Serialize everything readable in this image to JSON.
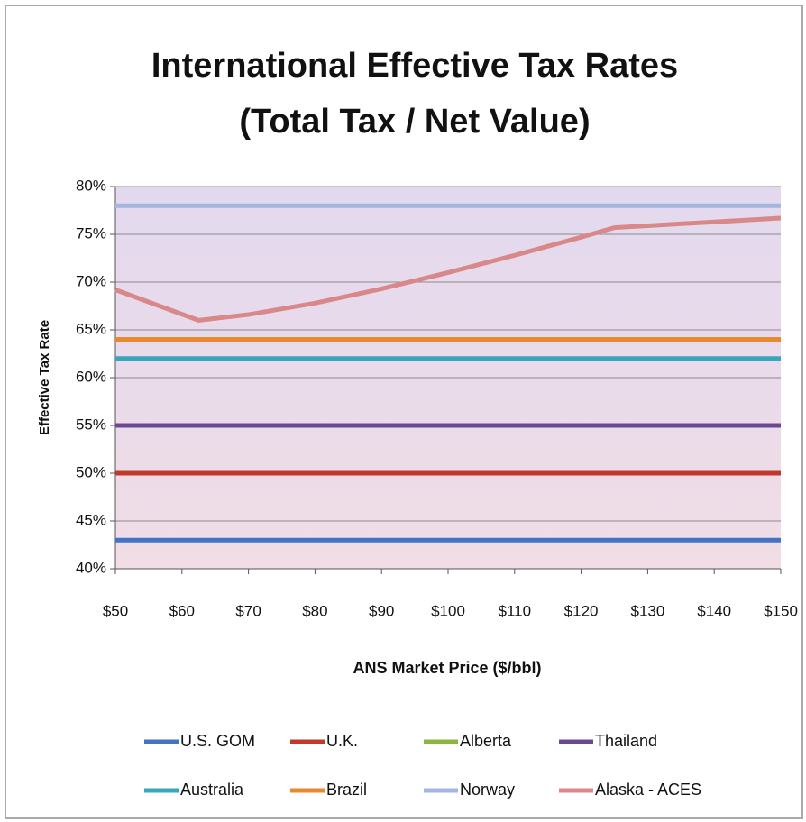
{
  "chart_data": {
    "type": "line",
    "title": "International Effective Tax Rates",
    "subtitle": "(Total Tax / Net Value)",
    "x_label": "ANS Market Price ($/bbl)",
    "y_label": "Effective Tax Rate",
    "x": [
      50,
      62.5,
      70,
      80,
      90,
      100,
      110,
      120,
      125,
      130,
      140,
      150
    ],
    "xlim": [
      50,
      150
    ],
    "xticks": [
      {
        "value": 50,
        "label": "$50"
      },
      {
        "value": 60,
        "label": "$60"
      },
      {
        "value": 70,
        "label": "$70"
      },
      {
        "value": 80,
        "label": "$80"
      },
      {
        "value": 90,
        "label": "$90"
      },
      {
        "value": 100,
        "label": "$100"
      },
      {
        "value": 110,
        "label": "$110"
      },
      {
        "value": 120,
        "label": "$120"
      },
      {
        "value": 130,
        "label": "$130"
      },
      {
        "value": 140,
        "label": "$140"
      },
      {
        "value": 150,
        "label": "$150"
      }
    ],
    "ylim": [
      40,
      80
    ],
    "yticks": [
      {
        "value": 40,
        "label": "40%"
      },
      {
        "value": 45,
        "label": "45%"
      },
      {
        "value": 50,
        "label": "50%"
      },
      {
        "value": 55,
        "label": "55%"
      },
      {
        "value": 60,
        "label": "60%"
      },
      {
        "value": 65,
        "label": "65%"
      },
      {
        "value": 70,
        "label": "70%"
      },
      {
        "value": 75,
        "label": "75%"
      },
      {
        "value": 80,
        "label": "80%"
      }
    ],
    "grid": true,
    "legend": "bottom",
    "series": [
      {
        "name": "U.S. GOM",
        "color": "#4472c4",
        "values": [
          43,
          43,
          43,
          43,
          43,
          43,
          43,
          43,
          43,
          43,
          43,
          43
        ]
      },
      {
        "name": "U.K.",
        "color": "#c0392b",
        "values": [
          50,
          50,
          50,
          50,
          50,
          50,
          50,
          50,
          50,
          50,
          50,
          50
        ]
      },
      {
        "name": "Alberta",
        "color": "#8ab640",
        "values": [
          64,
          64,
          64,
          64,
          64,
          64,
          64,
          64,
          64,
          64,
          64,
          64
        ]
      },
      {
        "name": "Thailand",
        "color": "#6a4b93",
        "values": [
          55,
          55,
          55,
          55,
          55,
          55,
          55,
          55,
          55,
          55,
          55,
          55
        ]
      },
      {
        "name": "Australia",
        "color": "#3aa6b9",
        "values": [
          62,
          62,
          62,
          62,
          62,
          62,
          62,
          62,
          62,
          62,
          62,
          62
        ]
      },
      {
        "name": "Brazil",
        "color": "#e9892f",
        "values": [
          64,
          64,
          64,
          64,
          64,
          64,
          64,
          64,
          64,
          64,
          64,
          64
        ]
      },
      {
        "name": "Norway",
        "color": "#a3b6e0",
        "values": [
          78,
          78,
          78,
          78,
          78,
          78,
          78,
          78,
          78,
          78,
          78,
          78
        ]
      },
      {
        "name": "Alaska - ACES",
        "color": "#d9888a",
        "values": [
          69.2,
          66,
          66.6,
          67.8,
          69.3,
          71,
          72.8,
          74.7,
          75.7,
          75.9,
          76.3,
          76.7
        ]
      }
    ]
  }
}
